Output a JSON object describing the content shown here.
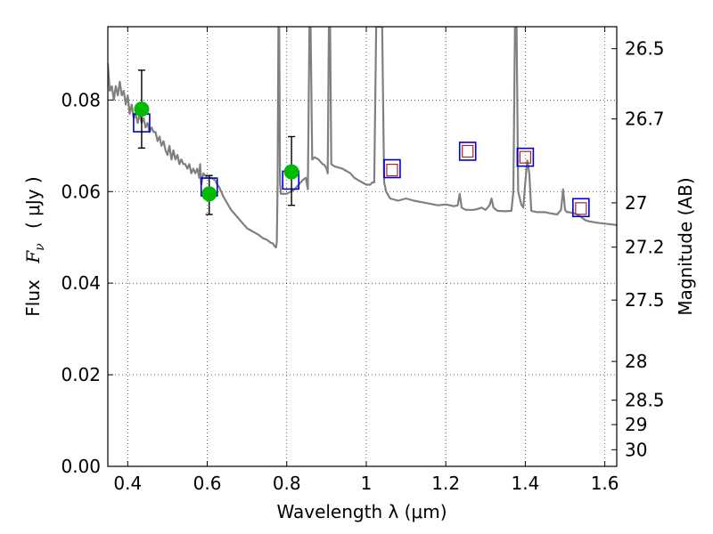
{
  "chart_data": {
    "type": "line",
    "xlabel": "Wavelength  λ (μm)",
    "ylabel_left_prefix": "Flux",
    "ylabel_left_symbol": "F",
    "ylabel_left_subscript": "ν",
    "ylabel_left_unit": "( μJy )",
    "ylabel_right": "Magnitude (AB)",
    "xlim": [
      0.35,
      1.63
    ],
    "ylim": [
      0.0,
      0.096
    ],
    "grid": true,
    "x_ticks": [
      0.4,
      0.6,
      0.8,
      1.0,
      1.2,
      1.4,
      1.6
    ],
    "x_tick_labels": [
      "0.4",
      "0.6",
      "0.8",
      "1",
      "1.2",
      "1.4",
      "1.6"
    ],
    "y_ticks": [
      0.0,
      0.02,
      0.04,
      0.06,
      0.08
    ],
    "y_tick_labels": [
      "0.00",
      "0.02",
      "0.04",
      "0.06",
      "0.08"
    ],
    "right_ticks": [
      {
        "mag": 26.5,
        "label": "26.5"
      },
      {
        "mag": 26.7,
        "label": "26.7"
      },
      {
        "mag": 27.0,
        "label": "27"
      },
      {
        "mag": 27.2,
        "label": "27.2"
      },
      {
        "mag": 27.5,
        "label": "27.5"
      },
      {
        "mag": 28.0,
        "label": "28"
      },
      {
        "mag": 28.5,
        "label": "28.5"
      },
      {
        "mag": 29.0,
        "label": "29"
      },
      {
        "mag": 30.0,
        "label": "30"
      }
    ],
    "model_sed": {
      "color": "#808080",
      "points": [
        [
          0.35,
          0.088
        ],
        [
          0.355,
          0.082
        ],
        [
          0.36,
          0.083
        ],
        [
          0.365,
          0.08
        ],
        [
          0.37,
          0.083
        ],
        [
          0.375,
          0.081
        ],
        [
          0.38,
          0.084
        ],
        [
          0.385,
          0.081
        ],
        [
          0.39,
          0.082
        ],
        [
          0.395,
          0.079
        ],
        [
          0.4,
          0.081
        ],
        [
          0.405,
          0.077
        ],
        [
          0.41,
          0.079
        ],
        [
          0.415,
          0.076
        ],
        [
          0.42,
          0.077
        ],
        [
          0.425,
          0.075
        ],
        [
          0.43,
          0.077
        ],
        [
          0.435,
          0.075
        ],
        [
          0.44,
          0.076
        ],
        [
          0.445,
          0.074
        ],
        [
          0.45,
          0.075
        ],
        [
          0.455,
          0.073
        ],
        [
          0.46,
          0.074
        ],
        [
          0.465,
          0.073
        ],
        [
          0.47,
          0.073
        ],
        [
          0.475,
          0.071
        ],
        [
          0.48,
          0.072
        ],
        [
          0.485,
          0.07
        ],
        [
          0.49,
          0.071
        ],
        [
          0.495,
          0.069
        ],
        [
          0.5,
          0.068
        ],
        [
          0.505,
          0.07
        ],
        [
          0.51,
          0.067
        ],
        [
          0.515,
          0.069
        ],
        [
          0.52,
          0.067
        ],
        [
          0.525,
          0.068
        ],
        [
          0.53,
          0.066
        ],
        [
          0.535,
          0.067
        ],
        [
          0.54,
          0.066
        ],
        [
          0.545,
          0.066
        ],
        [
          0.55,
          0.065
        ],
        [
          0.555,
          0.066
        ],
        [
          0.56,
          0.064
        ],
        [
          0.565,
          0.065
        ],
        [
          0.57,
          0.064
        ],
        [
          0.575,
          0.065
        ],
        [
          0.58,
          0.063
        ],
        [
          0.582,
          0.066
        ],
        [
          0.585,
          0.0615
        ],
        [
          0.59,
          0.064
        ],
        [
          0.6,
          0.063
        ],
        [
          0.61,
          0.063
        ],
        [
          0.62,
          0.0625
        ],
        [
          0.625,
          0.0615
        ],
        [
          0.63,
          0.061
        ],
        [
          0.64,
          0.059
        ],
        [
          0.65,
          0.0575
        ],
        [
          0.66,
          0.056
        ],
        [
          0.67,
          0.055
        ],
        [
          0.68,
          0.054
        ],
        [
          0.69,
          0.053
        ],
        [
          0.7,
          0.052
        ],
        [
          0.71,
          0.0515
        ],
        [
          0.72,
          0.051
        ],
        [
          0.73,
          0.0505
        ],
        [
          0.74,
          0.0498
        ],
        [
          0.75,
          0.0495
        ],
        [
          0.76,
          0.0488
        ],
        [
          0.765,
          0.0487
        ],
        [
          0.77,
          0.048
        ],
        [
          0.773,
          0.0478
        ],
        [
          0.775,
          0.049
        ],
        [
          0.777,
          0.062
        ],
        [
          0.779,
          0.096
        ],
        [
          0.781,
          0.096
        ],
        [
          0.783,
          0.062
        ],
        [
          0.785,
          0.0595
        ],
        [
          0.79,
          0.0595
        ],
        [
          0.8,
          0.0595
        ],
        [
          0.81,
          0.06
        ],
        [
          0.82,
          0.0605
        ],
        [
          0.83,
          0.0615
        ],
        [
          0.84,
          0.0625
        ],
        [
          0.848,
          0.063
        ],
        [
          0.853,
          0.0605
        ],
        [
          0.857,
          0.096
        ],
        [
          0.86,
          0.096
        ],
        [
          0.864,
          0.067
        ],
        [
          0.87,
          0.0675
        ],
        [
          0.88,
          0.067
        ],
        [
          0.89,
          0.066
        ],
        [
          0.895,
          0.0658
        ],
        [
          0.9,
          0.065
        ],
        [
          0.903,
          0.064
        ],
        [
          0.906,
          0.096
        ],
        [
          0.909,
          0.096
        ],
        [
          0.912,
          0.066
        ],
        [
          0.92,
          0.0655
        ],
        [
          0.94,
          0.065
        ],
        [
          0.96,
          0.064
        ],
        [
          0.97,
          0.063
        ],
        [
          0.98,
          0.0625
        ],
        [
          0.99,
          0.062
        ],
        [
          1.0,
          0.0615
        ],
        [
          1.01,
          0.0615
        ],
        [
          1.015,
          0.062
        ],
        [
          1.02,
          0.062
        ],
        [
          1.025,
          0.096
        ],
        [
          1.04,
          0.096
        ],
        [
          1.045,
          0.062
        ],
        [
          1.05,
          0.06
        ],
        [
          1.06,
          0.0585
        ],
        [
          1.08,
          0.058
        ],
        [
          1.1,
          0.0585
        ],
        [
          1.12,
          0.058
        ],
        [
          1.15,
          0.0575
        ],
        [
          1.18,
          0.057
        ],
        [
          1.2,
          0.0572
        ],
        [
          1.22,
          0.0568
        ],
        [
          1.23,
          0.057
        ],
        [
          1.235,
          0.0595
        ],
        [
          1.24,
          0.0565
        ],
        [
          1.25,
          0.056
        ],
        [
          1.27,
          0.056
        ],
        [
          1.28,
          0.0562
        ],
        [
          1.29,
          0.0565
        ],
        [
          1.3,
          0.056
        ],
        [
          1.31,
          0.057
        ],
        [
          1.315,
          0.0585
        ],
        [
          1.32,
          0.0565
        ],
        [
          1.33,
          0.0558
        ],
        [
          1.35,
          0.0557
        ],
        [
          1.365,
          0.0558
        ],
        [
          1.37,
          0.06
        ],
        [
          1.374,
          0.096
        ],
        [
          1.378,
          0.096
        ],
        [
          1.382,
          0.06
        ],
        [
          1.39,
          0.0572
        ],
        [
          1.395,
          0.0565
        ],
        [
          1.4,
          0.062
        ],
        [
          1.405,
          0.0668
        ],
        [
          1.41,
          0.064
        ],
        [
          1.415,
          0.0558
        ],
        [
          1.43,
          0.0555
        ],
        [
          1.45,
          0.0555
        ],
        [
          1.46,
          0.0553
        ],
        [
          1.48,
          0.055
        ],
        [
          1.49,
          0.056
        ],
        [
          1.495,
          0.0605
        ],
        [
          1.5,
          0.056
        ],
        [
          1.505,
          0.0555
        ],
        [
          1.51,
          0.0555
        ],
        [
          1.52,
          0.0553
        ],
        [
          1.53,
          0.055
        ],
        [
          1.54,
          0.0545
        ],
        [
          1.55,
          0.0538
        ],
        [
          1.56,
          0.0535
        ],
        [
          1.58,
          0.0532
        ],
        [
          1.6,
          0.053
        ],
        [
          1.62,
          0.0528
        ],
        [
          1.63,
          0.0527
        ]
      ]
    },
    "model_bands": {
      "color": "#0000cc",
      "points": [
        [
          0.435,
          0.075
        ],
        [
          0.605,
          0.061
        ],
        [
          0.81,
          0.0625
        ],
        [
          1.065,
          0.065
        ],
        [
          1.255,
          0.0688
        ],
        [
          1.4,
          0.0675
        ],
        [
          1.54,
          0.0565
        ]
      ]
    },
    "predicted_bands": {
      "color": "#b22222",
      "points": [
        [
          1.065,
          0.0647
        ],
        [
          1.255,
          0.0688
        ],
        [
          1.4,
          0.0675
        ],
        [
          1.54,
          0.0563
        ]
      ]
    },
    "observed": {
      "color": "#00bb00",
      "points": [
        {
          "x": 0.435,
          "y": 0.078,
          "err_low": 0.0695,
          "err_high": 0.0865
        },
        {
          "x": 0.605,
          "y": 0.0595,
          "err_low": 0.055,
          "err_high": 0.0635
        },
        {
          "x": 0.812,
          "y": 0.0643,
          "err_low": 0.057,
          "err_high": 0.072
        }
      ]
    }
  }
}
